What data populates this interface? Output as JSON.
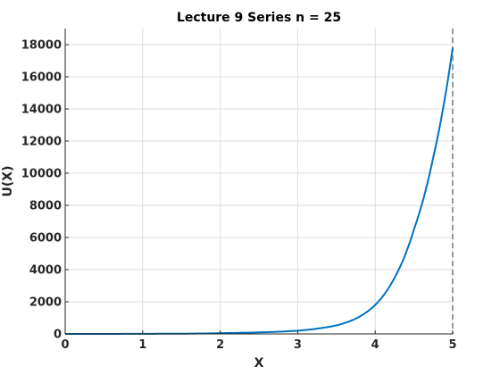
{
  "chart_data": {
    "type": "line",
    "title": "Lecture 9 Series n = 25",
    "xlabel": "X",
    "ylabel": "U(X)",
    "xlim": [
      0,
      5
    ],
    "ylim": [
      0,
      19000
    ],
    "xticks": [
      0,
      1,
      2,
      3,
      4,
      5
    ],
    "xtick_labels": [
      "0",
      "1",
      "2",
      "3",
      "4",
      "5"
    ],
    "yticks": [
      0,
      2000,
      4000,
      6000,
      8000,
      10000,
      12000,
      14000,
      16000,
      18000
    ],
    "ytick_labels": [
      "0",
      "2000",
      "4000",
      "6000",
      "8000",
      "10000",
      "12000",
      "14000",
      "16000",
      "18000"
    ],
    "grid": true,
    "series": [
      {
        "x": [
          0,
          0.5,
          1,
          1.5,
          2,
          2.5,
          3,
          3.25,
          3.5,
          3.75,
          4,
          4.25,
          4.5,
          4.75,
          5
        ],
        "y": [
          0,
          2,
          8,
          15,
          50,
          95,
          200,
          330,
          530,
          950,
          1800,
          3500,
          6500,
          11000,
          17800
        ],
        "color": "#0072bd"
      }
    ],
    "reference_line": {
      "x": 5,
      "style": "dashed",
      "color": "#999999"
    }
  }
}
